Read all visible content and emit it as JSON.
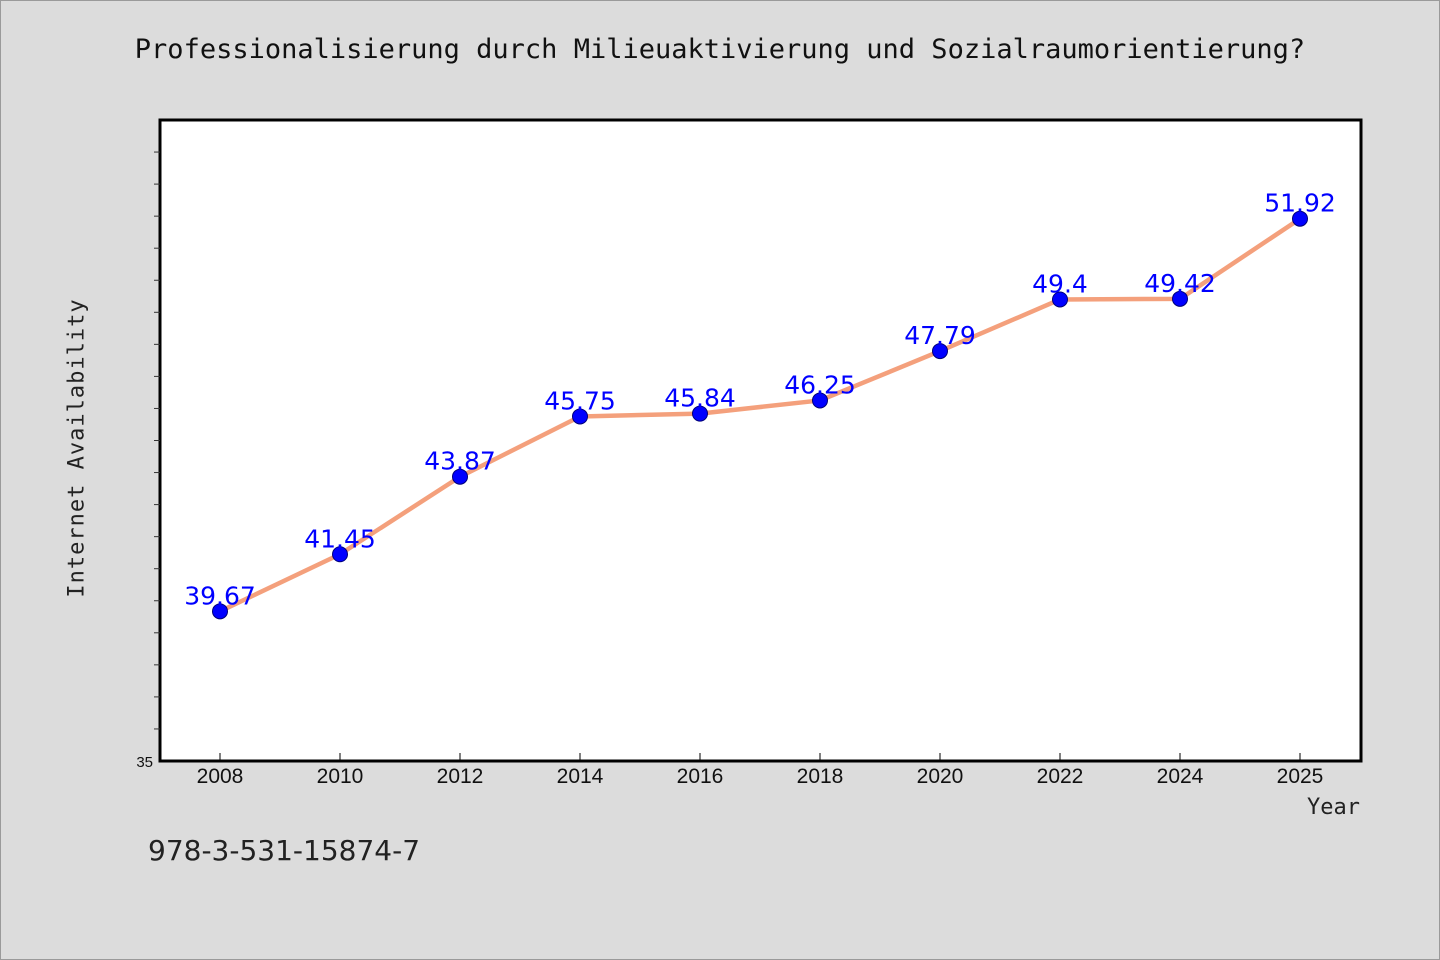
{
  "chart_data": {
    "type": "line",
    "title": "Professionalisierung durch Milieuaktivierung und Sozialraumorientierung?",
    "xlabel": "Year",
    "ylabel": "Internet Availability",
    "x": [
      2008,
      2010,
      2012,
      2014,
      2016,
      2018,
      2020,
      2022,
      2024,
      2025
    ],
    "tick_labels": [
      "2008",
      "2010",
      "2012",
      "2014",
      "2016",
      "2018",
      "2020",
      "2022",
      "2024",
      "2025"
    ],
    "series": [
      {
        "values": [
          39.67,
          41.45,
          43.87,
          45.75,
          45.84,
          46.25,
          47.79,
          49.4,
          49.42,
          51.92
        ],
        "labels": [
          "39.67",
          "41.45",
          "43.87",
          "45.75",
          "45.84",
          "46.25",
          "47.79",
          "49.4",
          "49.42",
          "51.92"
        ]
      }
    ],
    "ylim": [
      35,
      55
    ],
    "y_min_label": "35",
    "grid": false,
    "colors": {
      "line": "#f4a07c",
      "marker": "#0000ff",
      "label": "#0000ff",
      "background": "#dcdcdc",
      "plot_background": "#ffffff"
    }
  },
  "footer": {
    "code": "978-3-531-15874-7"
  }
}
